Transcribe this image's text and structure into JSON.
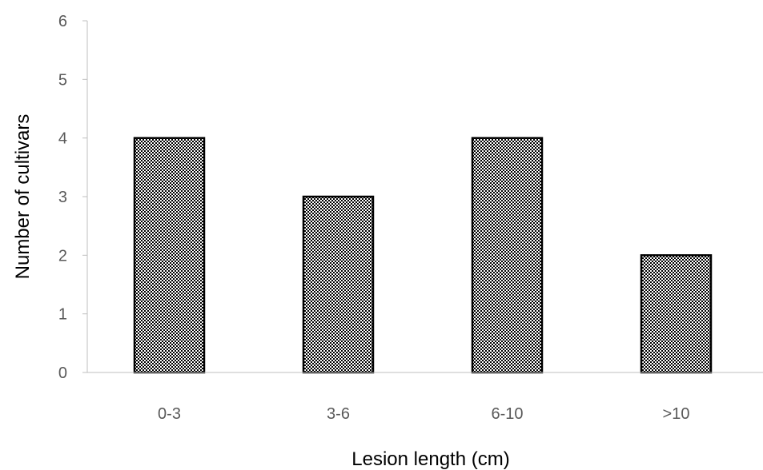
{
  "chart_data": {
    "type": "bar",
    "title": "",
    "xlabel": "Lesion length (cm)",
    "ylabel": "Number of cultivars",
    "categories": [
      "0-3",
      "3-6",
      "6-10",
      ">10"
    ],
    "values": [
      4,
      3,
      4,
      2
    ],
    "ylim": [
      0,
      6
    ],
    "yticks": [
      "0",
      "1",
      "2",
      "3",
      "4",
      "5",
      "6"
    ],
    "grid": false,
    "legend": "none",
    "bar_fill": "crosshatch-dots",
    "colors": {
      "bar_pattern": "#000000",
      "bar_background": "#ffffff",
      "axis": "#bfbfbf",
      "tick_text": "#595959"
    }
  }
}
